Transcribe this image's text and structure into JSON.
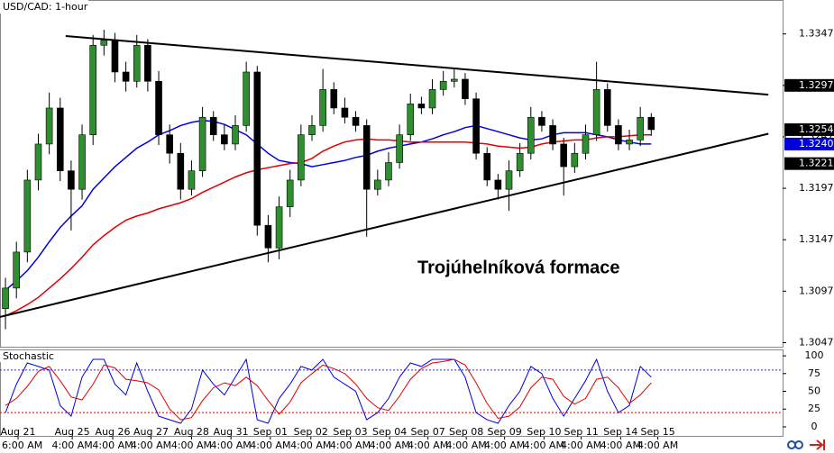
{
  "chart_data": {
    "type": "candlestick",
    "title": "USD/CAD: 1-hour",
    "annotation": "Trojúhelníková formace",
    "xlim": [
      -0.5,
      71
    ],
    "ylim": [
      1.3043,
      1.338
    ],
    "yticks": [
      1.3047,
      1.3097,
      1.3147,
      1.3197,
      1.3247,
      1.3297,
      1.3347
    ],
    "up_color": "#2f8f2f",
    "down_color": "#000000",
    "candles": {
      "open": [
        1.308,
        1.31,
        1.3135,
        1.3205,
        1.324,
        1.3275,
        1.3214,
        1.3196,
        1.3249,
        1.3336,
        1.3341,
        1.331,
        1.3301,
        1.3336,
        1.3301,
        1.3249,
        1.3231,
        1.3196,
        1.3214,
        1.3266,
        1.3249,
        1.324,
        1.3258,
        1.331,
        1.3161,
        1.3139,
        1.3179,
        1.3205,
        1.3249,
        1.3258,
        1.3293,
        1.3275,
        1.3266,
        1.3258,
        1.3196,
        1.3205,
        1.3222,
        1.3249,
        1.3279,
        1.3275,
        1.3293,
        1.3301,
        1.3303,
        1.3284,
        1.3231,
        1.3205,
        1.3196,
        1.3214,
        1.3231,
        1.3266,
        1.3258,
        1.324,
        1.3218,
        1.3231,
        1.3249,
        1.3293,
        1.3258,
        1.324,
        1.3244,
        1.3266
      ],
      "high": [
        1.311,
        1.3145,
        1.3215,
        1.325,
        1.329,
        1.3285,
        1.3224,
        1.3259,
        1.3346,
        1.3351,
        1.3348,
        1.332,
        1.3346,
        1.3342,
        1.3311,
        1.3259,
        1.3241,
        1.3224,
        1.3276,
        1.3272,
        1.3259,
        1.3268,
        1.332,
        1.3316,
        1.3171,
        1.3189,
        1.3215,
        1.3259,
        1.3268,
        1.3313,
        1.33,
        1.3285,
        1.3272,
        1.3264,
        1.3215,
        1.3232,
        1.3259,
        1.3289,
        1.3286,
        1.3303,
        1.3311,
        1.3313,
        1.3309,
        1.329,
        1.3237,
        1.3211,
        1.3224,
        1.3241,
        1.3276,
        1.3272,
        1.3264,
        1.3246,
        1.3241,
        1.3259,
        1.332,
        1.3299,
        1.3264,
        1.3254,
        1.3276,
        1.327
      ],
      "low": [
        1.306,
        1.309,
        1.3125,
        1.3195,
        1.323,
        1.3204,
        1.3156,
        1.3186,
        1.3239,
        1.3326,
        1.33,
        1.3291,
        1.3295,
        1.3291,
        1.3239,
        1.3221,
        1.3186,
        1.319,
        1.3208,
        1.3243,
        1.3234,
        1.3234,
        1.3252,
        1.3151,
        1.3125,
        1.3128,
        1.3169,
        1.3199,
        1.3243,
        1.3252,
        1.3269,
        1.326,
        1.3252,
        1.315,
        1.319,
        1.3199,
        1.3216,
        1.3243,
        1.3269,
        1.3269,
        1.3287,
        1.3295,
        1.3278,
        1.3225,
        1.3199,
        1.3186,
        1.3175,
        1.3208,
        1.3225,
        1.3252,
        1.3234,
        1.319,
        1.3212,
        1.3225,
        1.3243,
        1.3252,
        1.3234,
        1.3234,
        1.3238,
        1.3248
      ],
      "close": [
        1.31,
        1.3135,
        1.3205,
        1.324,
        1.3275,
        1.3214,
        1.3196,
        1.3249,
        1.3336,
        1.3341,
        1.331,
        1.3301,
        1.3336,
        1.3301,
        1.3249,
        1.3231,
        1.3196,
        1.3214,
        1.3266,
        1.3249,
        1.324,
        1.3258,
        1.331,
        1.3161,
        1.3139,
        1.3179,
        1.3205,
        1.3249,
        1.3258,
        1.3293,
        1.3275,
        1.3266,
        1.3258,
        1.3196,
        1.3205,
        1.3222,
        1.3249,
        1.3279,
        1.3275,
        1.3293,
        1.3301,
        1.3303,
        1.3284,
        1.3231,
        1.3205,
        1.3196,
        1.3214,
        1.3231,
        1.3266,
        1.3258,
        1.324,
        1.3218,
        1.3231,
        1.3249,
        1.3293,
        1.3258,
        1.324,
        1.3244,
        1.3266,
        1.3254
      ]
    },
    "moving_averages": [
      {
        "color": "#0000dd",
        "values": [
          1.3098,
          1.3107,
          1.3117,
          1.313,
          1.3145,
          1.3159,
          1.317,
          1.318,
          1.3196,
          1.3207,
          1.3218,
          1.3227,
          1.3236,
          1.3242,
          1.3249,
          1.3253,
          1.3258,
          1.3261,
          1.3263,
          1.3262,
          1.3259,
          1.3254,
          1.3249,
          1.324,
          1.3231,
          1.3224,
          1.3222,
          1.3221,
          1.3218,
          1.322,
          1.3222,
          1.3224,
          1.3227,
          1.3229,
          1.3233,
          1.3236,
          1.3238,
          1.324,
          1.3242,
          1.3245,
          1.3249,
          1.3252,
          1.3256,
          1.3258,
          1.3255,
          1.3252,
          1.3249,
          1.3246,
          1.3244,
          1.3245,
          1.3249,
          1.3251,
          1.3251,
          1.3251,
          1.3249,
          1.3247,
          1.3244,
          1.3242,
          1.324,
          1.324
        ]
      },
      {
        "color": "#e00000",
        "values": [
          1.3073,
          1.3078,
          1.3084,
          1.3091,
          1.31,
          1.3109,
          1.3119,
          1.313,
          1.3142,
          1.3151,
          1.3159,
          1.3166,
          1.317,
          1.3173,
          1.3177,
          1.318,
          1.3183,
          1.3187,
          1.3193,
          1.3198,
          1.3203,
          1.3208,
          1.3212,
          1.3215,
          1.3217,
          1.3219,
          1.3221,
          1.3222,
          1.3226,
          1.3233,
          1.3238,
          1.3242,
          1.3244,
          1.3245,
          1.3244,
          1.3244,
          1.3243,
          1.3242,
          1.3242,
          1.3242,
          1.3242,
          1.3242,
          1.3242,
          1.3241,
          1.324,
          1.3238,
          1.3237,
          1.3236,
          1.3237,
          1.324,
          1.3242,
          1.3243,
          1.3244,
          1.3244,
          1.3246,
          1.3247,
          1.3247,
          1.3248,
          1.3249,
          1.3249
        ]
      }
    ],
    "trendlines": [
      {
        "color": "#000000",
        "x": [
          5.5,
          69.7
        ],
        "y": [
          1.3345,
          1.3288
        ]
      },
      {
        "color": "#000000",
        "x": [
          -0.5,
          69.7
        ],
        "y": [
          1.3072,
          1.325
        ]
      }
    ],
    "price_labels": [
      {
        "value": 1.3297,
        "label": "1.3297",
        "color": "#000000"
      },
      {
        "value": 1.3254,
        "label": "1.3254",
        "color": "#000000"
      },
      {
        "value": 1.324,
        "label": "1.3240",
        "color": "#0000dd"
      },
      {
        "value": 1.3221,
        "label": "1.3221",
        "color": "#000000"
      }
    ],
    "xticks": [
      {
        "value": 1.15,
        "label": "Aug 21"
      },
      {
        "value": 6.1,
        "label": "Aug 25"
      },
      {
        "value": 9.8,
        "label": "Aug 26"
      },
      {
        "value": 13.3,
        "label": "Aug 27"
      },
      {
        "value": 17.0,
        "label": "Aug 28"
      },
      {
        "value": 20.6,
        "label": "Aug 31"
      },
      {
        "value": 24.2,
        "label": "Sep 01"
      },
      {
        "value": 27.9,
        "label": "Sep 02"
      },
      {
        "value": 31.5,
        "label": "Sep 03"
      },
      {
        "value": 35.1,
        "label": "Sep 04"
      },
      {
        "value": 38.6,
        "label": "Sep 07"
      },
      {
        "value": 42.1,
        "label": "Sep 08"
      },
      {
        "value": 45.6,
        "label": "Sep 09"
      },
      {
        "value": 49.2,
        "label": "Sep 10"
      },
      {
        "value": 52.6,
        "label": "Sep 11"
      },
      {
        "value": 56.2,
        "label": "Sep 14"
      },
      {
        "value": 59.6,
        "label": "Sep 15"
      }
    ],
    "xtick_times": [
      "6:00 AM",
      "4:00 AM",
      "4:00 AM",
      "4:00 AM",
      "4:00 AM",
      "4:00 AM",
      "4:00 AM",
      "4:00 AM",
      "4:00 AM",
      "4:00 AM",
      "4:00 AM",
      "4:00 AM",
      "4:00 AM",
      "4:00 AM",
      "4:00 AM",
      "4:00 AM",
      "4:00 AM"
    ],
    "stochastic": {
      "title": "Stochastic",
      "ylim": [
        -14,
        109
      ],
      "yticks": [
        0,
        25,
        50,
        75,
        100
      ],
      "levels": [
        20,
        80
      ],
      "level_color": "#3030c0",
      "level_color_low": "#e00000",
      "series": [
        {
          "color": "#0000dd",
          "values": [
            20,
            60,
            90,
            85,
            80,
            30,
            15,
            70,
            95,
            95,
            60,
            45,
            90,
            50,
            15,
            10,
            5,
            25,
            80,
            60,
            45,
            70,
            95,
            10,
            5,
            40,
            60,
            85,
            80,
            95,
            70,
            60,
            50,
            10,
            20,
            40,
            70,
            90,
            85,
            95,
            95,
            95,
            70,
            20,
            10,
            5,
            30,
            50,
            85,
            75,
            40,
            15,
            40,
            65,
            95,
            50,
            20,
            30,
            85,
            70
          ]
        },
        {
          "color": "#e00000",
          "values": [
            30,
            40,
            57,
            78,
            85,
            65,
            42,
            38,
            60,
            87,
            83,
            67,
            65,
            62,
            52,
            25,
            10,
            13,
            37,
            55,
            62,
            58,
            70,
            58,
            37,
            18,
            35,
            62,
            75,
            87,
            82,
            75,
            60,
            40,
            27,
            23,
            43,
            67,
            82,
            90,
            92,
            95,
            87,
            62,
            33,
            12,
            15,
            28,
            55,
            70,
            67,
            43,
            32,
            40,
            67,
            70,
            55,
            33,
            45,
            62
          ]
        }
      ]
    }
  }
}
